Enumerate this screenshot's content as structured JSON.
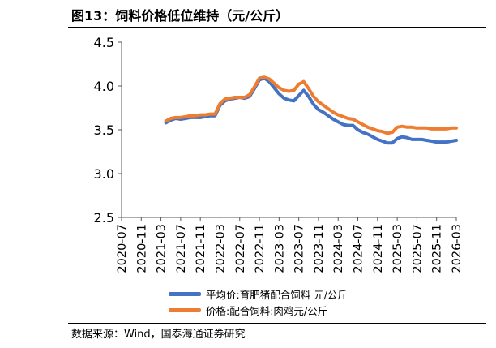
{
  "title": "图13：饲料价格低位维持（元/公斤）",
  "source": "数据来源：Wind，国泰海通证券研究",
  "colors": {
    "series_average": "#4472C4",
    "series_ratio": "#ED7D31",
    "axis": "#595959"
  },
  "chart_data": {
    "type": "line",
    "title": "",
    "xlabel": "",
    "ylabel": "",
    "ylim": [
      2.5,
      4.5
    ],
    "yticks": [
      "2.5",
      "3.0",
      "3.5",
      "4.0",
      "4.5"
    ],
    "xlim": [
      "2020-07",
      "2026-03"
    ],
    "xticks": [
      "2020-07",
      "2020-11",
      "2021-03",
      "2021-07",
      "2021-11",
      "2022-03",
      "2022-07",
      "2022-11",
      "2023-03",
      "2023-07",
      "2023-11",
      "2024-03",
      "2024-07",
      "2024-11",
      "2025-03",
      "2025-07",
      "2025-11",
      "2026-03"
    ],
    "grid": false,
    "legend_position": "bottom",
    "series": [
      {
        "name": "平均价:育肥猪配合饲料 元/公斤",
        "color": "#4472C4",
        "points": [
          [
            "2021-04",
            3.58
          ],
          [
            "2021-05",
            3.61
          ],
          [
            "2021-06",
            3.63
          ],
          [
            "2021-07",
            3.62
          ],
          [
            "2021-08",
            3.63
          ],
          [
            "2021-09",
            3.64
          ],
          [
            "2021-10",
            3.64
          ],
          [
            "2021-11",
            3.64
          ],
          [
            "2021-12",
            3.65
          ],
          [
            "2022-01",
            3.66
          ],
          [
            "2022-02",
            3.66
          ],
          [
            "2022-03",
            3.78
          ],
          [
            "2022-04",
            3.83
          ],
          [
            "2022-05",
            3.85
          ],
          [
            "2022-06",
            3.86
          ],
          [
            "2022-07",
            3.87
          ],
          [
            "2022-08",
            3.86
          ],
          [
            "2022-09",
            3.88
          ],
          [
            "2022-10",
            3.97
          ],
          [
            "2022-11",
            4.07
          ],
          [
            "2022-12",
            4.09
          ],
          [
            "2023-01",
            4.05
          ],
          [
            "2023-02",
            3.98
          ],
          [
            "2023-03",
            3.91
          ],
          [
            "2023-04",
            3.86
          ],
          [
            "2023-05",
            3.84
          ],
          [
            "2023-06",
            3.83
          ],
          [
            "2023-07",
            3.89
          ],
          [
            "2023-08",
            3.95
          ],
          [
            "2023-09",
            3.88
          ],
          [
            "2023-10",
            3.79
          ],
          [
            "2023-11",
            3.73
          ],
          [
            "2023-12",
            3.7
          ],
          [
            "2024-01",
            3.66
          ],
          [
            "2024-02",
            3.62
          ],
          [
            "2024-03",
            3.59
          ],
          [
            "2024-04",
            3.56
          ],
          [
            "2024-05",
            3.55
          ],
          [
            "2024-06",
            3.55
          ],
          [
            "2024-07",
            3.5
          ],
          [
            "2024-08",
            3.47
          ],
          [
            "2024-09",
            3.45
          ],
          [
            "2024-10",
            3.42
          ],
          [
            "2024-11",
            3.39
          ],
          [
            "2024-12",
            3.37
          ],
          [
            "2025-01",
            3.35
          ],
          [
            "2025-02",
            3.35
          ],
          [
            "2025-03",
            3.4
          ],
          [
            "2025-04",
            3.42
          ],
          [
            "2025-05",
            3.41
          ],
          [
            "2025-06",
            3.39
          ],
          [
            "2025-07",
            3.39
          ],
          [
            "2025-08",
            3.39
          ],
          [
            "2025-09",
            3.38
          ],
          [
            "2025-10",
            3.37
          ],
          [
            "2025-11",
            3.36
          ],
          [
            "2025-12",
            3.36
          ],
          [
            "2026-01",
            3.36
          ],
          [
            "2026-02",
            3.37
          ],
          [
            "2026-03",
            3.38
          ]
        ]
      },
      {
        "name": "价格:配合饲料:肉鸡元/公斤",
        "color": "#ED7D31",
        "points": [
          [
            "2021-04",
            3.6
          ],
          [
            "2021-05",
            3.63
          ],
          [
            "2021-06",
            3.64
          ],
          [
            "2021-07",
            3.64
          ],
          [
            "2021-08",
            3.65
          ],
          [
            "2021-09",
            3.66
          ],
          [
            "2021-10",
            3.66
          ],
          [
            "2021-11",
            3.67
          ],
          [
            "2021-12",
            3.67
          ],
          [
            "2022-01",
            3.68
          ],
          [
            "2022-02",
            3.68
          ],
          [
            "2022-03",
            3.8
          ],
          [
            "2022-04",
            3.85
          ],
          [
            "2022-05",
            3.86
          ],
          [
            "2022-06",
            3.87
          ],
          [
            "2022-07",
            3.87
          ],
          [
            "2022-08",
            3.87
          ],
          [
            "2022-09",
            3.9
          ],
          [
            "2022-10",
            3.99
          ],
          [
            "2022-11",
            4.09
          ],
          [
            "2022-12",
            4.1
          ],
          [
            "2023-01",
            4.08
          ],
          [
            "2023-02",
            4.03
          ],
          [
            "2023-03",
            3.98
          ],
          [
            "2023-04",
            3.95
          ],
          [
            "2023-05",
            3.94
          ],
          [
            "2023-06",
            3.95
          ],
          [
            "2023-07",
            4.02
          ],
          [
            "2023-08",
            4.05
          ],
          [
            "2023-09",
            3.97
          ],
          [
            "2023-10",
            3.88
          ],
          [
            "2023-11",
            3.82
          ],
          [
            "2023-12",
            3.78
          ],
          [
            "2024-01",
            3.74
          ],
          [
            "2024-02",
            3.7
          ],
          [
            "2024-03",
            3.67
          ],
          [
            "2024-04",
            3.65
          ],
          [
            "2024-05",
            3.63
          ],
          [
            "2024-06",
            3.62
          ],
          [
            "2024-07",
            3.59
          ],
          [
            "2024-08",
            3.56
          ],
          [
            "2024-09",
            3.53
          ],
          [
            "2024-10",
            3.51
          ],
          [
            "2024-11",
            3.49
          ],
          [
            "2024-12",
            3.48
          ],
          [
            "2025-01",
            3.46
          ],
          [
            "2025-02",
            3.47
          ],
          [
            "2025-03",
            3.53
          ],
          [
            "2025-04",
            3.54
          ],
          [
            "2025-05",
            3.53
          ],
          [
            "2025-06",
            3.53
          ],
          [
            "2025-07",
            3.52
          ],
          [
            "2025-08",
            3.52
          ],
          [
            "2025-09",
            3.52
          ],
          [
            "2025-10",
            3.51
          ],
          [
            "2025-11",
            3.51
          ],
          [
            "2025-12",
            3.51
          ],
          [
            "2026-01",
            3.51
          ],
          [
            "2026-02",
            3.52
          ],
          [
            "2026-03",
            3.52
          ]
        ]
      }
    ]
  }
}
